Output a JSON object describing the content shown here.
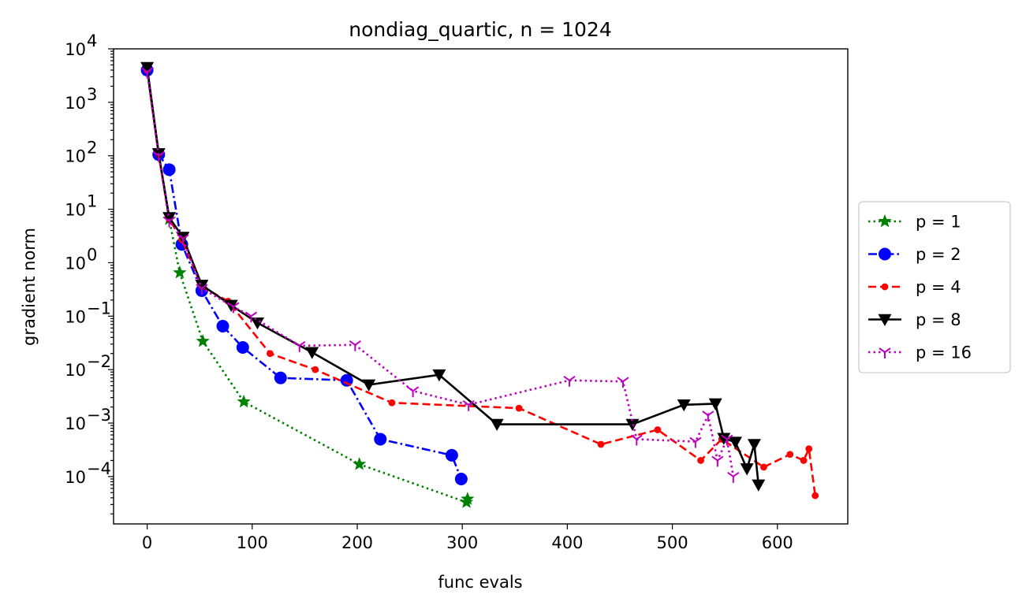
{
  "chart_data": {
    "type": "line",
    "title": "nondiag_quartic, n = 1024",
    "xlabel": "func evals",
    "ylabel": "gradient norm",
    "xscale": "linear",
    "yscale": "log",
    "xlim": [
      -32,
      667
    ],
    "ylim": [
      1.3e-05,
      10000
    ],
    "xticks": [
      0,
      100,
      200,
      300,
      400,
      500,
      600
    ],
    "xtick_labels": [
      "0",
      "100",
      "200",
      "300",
      "400",
      "500",
      "600"
    ],
    "yticks": [
      0.0001,
      0.001,
      0.01,
      0.1,
      1,
      10,
      100,
      1000,
      10000
    ],
    "ytick_labels": [
      {
        "base": "10",
        "exp": "−4"
      },
      {
        "base": "10",
        "exp": "−3"
      },
      {
        "base": "10",
        "exp": "−2"
      },
      {
        "base": "10",
        "exp": "−1"
      },
      {
        "base": "10",
        "exp": "0"
      },
      {
        "base": "10",
        "exp": "1"
      },
      {
        "base": "10",
        "exp": "2"
      },
      {
        "base": "10",
        "exp": "3"
      },
      {
        "base": "10",
        "exp": "4"
      }
    ],
    "grid": false,
    "legend_position": "outside-right",
    "series": [
      {
        "name": "p = 1",
        "color": "#008000",
        "linestyle": "dotted",
        "marker": "star",
        "x": [
          0,
          11,
          21,
          31,
          53,
          92,
          202,
          304,
          305
        ],
        "y": [
          4000,
          105,
          6.5,
          0.65,
          0.034,
          0.0025,
          0.00017,
          3.3e-05,
          3.8e-05
        ]
      },
      {
        "name": "p = 2",
        "color": "#0000ff",
        "linestyle": "dashdot",
        "marker": "circle",
        "x": [
          0,
          11,
          21,
          33,
          52,
          72,
          91,
          127,
          190,
          222,
          290,
          299
        ],
        "y": [
          4000,
          105,
          55,
          2.2,
          0.3,
          0.065,
          0.026,
          0.007,
          0.0063,
          0.0005,
          0.00025,
          9e-05
        ]
      },
      {
        "name": "p = 4",
        "color": "#ff0000",
        "linestyle": "dashed",
        "marker": "dot",
        "x": [
          0,
          11,
          21,
          33,
          52,
          77,
          117,
          160,
          233,
          354,
          432,
          486,
          527,
          547,
          587,
          612,
          625,
          630,
          636
        ],
        "y": [
          4000,
          105,
          6.5,
          2.7,
          0.36,
          0.19,
          0.02,
          0.01,
          0.0024,
          0.0019,
          0.0004,
          0.00075,
          0.0002,
          0.0005,
          0.00015,
          0.00026,
          0.0002,
          0.00033,
          4.4e-05
        ]
      },
      {
        "name": "p = 8",
        "color": "#000000",
        "linestyle": "solid",
        "marker": "triangle-down",
        "x": [
          0,
          11,
          21,
          34,
          52,
          80,
          105,
          157,
          211,
          278,
          333,
          462,
          511,
          541,
          549,
          560,
          571,
          578,
          582
        ],
        "y": [
          4500,
          110,
          7,
          3,
          0.38,
          0.16,
          0.075,
          0.021,
          0.0052,
          0.008,
          0.00095,
          0.00095,
          0.0022,
          0.0023,
          0.00052,
          0.00044,
          0.00014,
          0.0004,
          7e-05
        ]
      },
      {
        "name": "p = 16",
        "color": "#bf00bf",
        "linestyle": "dotted",
        "marker": "tri-down",
        "x": [
          0,
          11,
          21,
          34,
          52,
          82,
          99,
          145,
          198,
          253,
          306,
          402,
          453,
          466,
          522,
          534,
          543,
          552,
          558
        ],
        "y": [
          3700,
          100,
          6,
          2.8,
          0.33,
          0.15,
          0.1,
          0.028,
          0.029,
          0.004,
          0.0022,
          0.0063,
          0.006,
          0.0005,
          0.00045,
          0.0014,
          0.0002,
          0.0005,
          0.0001
        ]
      }
    ]
  }
}
